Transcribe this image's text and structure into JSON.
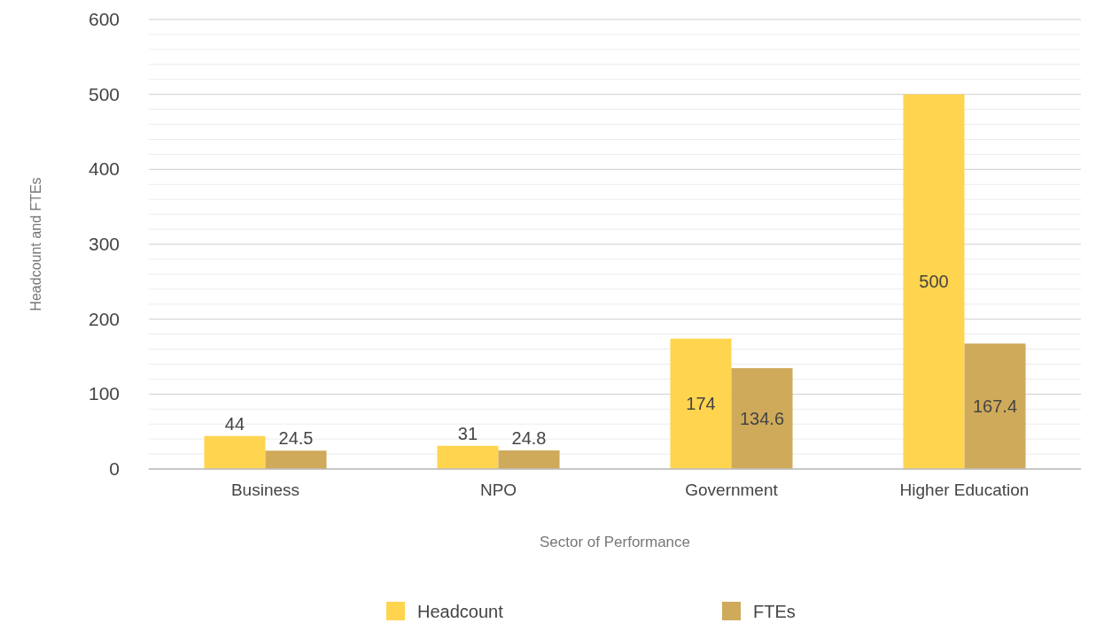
{
  "chart_data": {
    "type": "bar",
    "xlabel": "Sector of Performance",
    "ylabel": "Headcount and FTEs",
    "categories": [
      "Business",
      "NPO",
      "Government",
      "Higher Education"
    ],
    "series": [
      {
        "name": "Headcount",
        "color": "#ffd44f",
        "values": [
          44,
          31,
          174,
          500
        ]
      },
      {
        "name": "FTEs",
        "color": "#cfaa5b",
        "values": [
          24.5,
          24.8,
          134.6,
          167.4
        ]
      }
    ],
    "ylim": [
      0,
      600
    ],
    "yticks": [
      0,
      {
        "value": 20,
        "label": null
      },
      {
        "value": 40,
        "label": null
      },
      {
        "value": 60,
        "label": null
      },
      {
        "value": 80,
        "label": null
      },
      100,
      {
        "value": 120,
        "label": null
      },
      {
        "value": 140,
        "label": null
      },
      {
        "value": 160,
        "label": null
      },
      {
        "value": 180,
        "label": null
      },
      200,
      {
        "value": 220,
        "label": null
      },
      {
        "value": 240,
        "label": null
      },
      {
        "value": 260,
        "label": null
      },
      {
        "value": 280,
        "label": null
      },
      300,
      {
        "value": 320,
        "label": null
      },
      {
        "value": 340,
        "label": null
      },
      {
        "value": 360,
        "label": null
      },
      {
        "value": 380,
        "label": null
      },
      400,
      {
        "value": 420,
        "label": null
      },
      {
        "value": 440,
        "label": null
      },
      {
        "value": 460,
        "label": null
      },
      {
        "value": 480,
        "label": null
      },
      500,
      {
        "value": 520,
        "label": null
      },
      {
        "value": 540,
        "label": null
      },
      {
        "value": 560,
        "label": null
      },
      {
        "value": 580,
        "label": null
      },
      600
    ],
    "grid": "y",
    "legend": "bottom",
    "data_labels": true
  }
}
